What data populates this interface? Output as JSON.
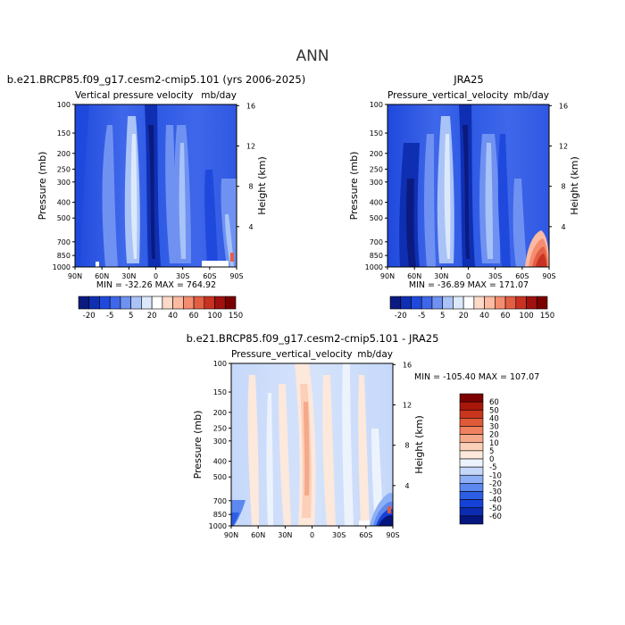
{
  "page_title": "ANN",
  "colormap_abs": [
    "#0b1a7e",
    "#0f2fb3",
    "#1f49dc",
    "#3f67ea",
    "#6f92f2",
    "#a9c3f7",
    "#dce9fb",
    "#ffffff",
    "#fdd9c7",
    "#fbbaa1",
    "#f48c70",
    "#e35f44",
    "#c93222",
    "#a1120f",
    "#7a0000"
  ],
  "colormap_diff": [
    "#06167f",
    "#0b2bb1",
    "#1541d6",
    "#2d5fe6",
    "#5c88f0",
    "#8daff5",
    "#c6d8fa",
    "#edf3fd",
    "#fde8dc",
    "#fbcfb8",
    "#f6a98a",
    "#ef815f",
    "#df5a39",
    "#c9341d",
    "#a8170a",
    "#7d0000"
  ],
  "chart_data": [
    {
      "id": "model",
      "type": "heatmap",
      "title": "b.e21.BRCP85.f09_g17.cesm2-cmip5.101 (yrs 2006-2025)",
      "subtitle_left": "Vertical pressure velocity",
      "subtitle_right": "mb/day",
      "ylabel": "Pressure (mb)",
      "ylabel_right": "Height (km)",
      "x_ticks": [
        "90N",
        "60N",
        "30N",
        "0",
        "30S",
        "60S",
        "90S"
      ],
      "y_ticks": [
        "100",
        "150",
        "200",
        "250",
        "300",
        "400",
        "500",
        "700",
        "850",
        "1000"
      ],
      "y2_ticks": [
        "16",
        "12",
        "8",
        "4"
      ],
      "stats": "MIN = -32.26   MAX = 764.92",
      "colorbar_labels": [
        "-20",
        "-5",
        "5",
        "20",
        "40",
        "60",
        "100",
        "150"
      ]
    },
    {
      "id": "obs",
      "type": "heatmap",
      "title": "JRA25",
      "subtitle_left": "Pressure_vertical_velocity",
      "subtitle_right": "mb/day",
      "ylabel": "Pressure (mb)",
      "ylabel_right": "Height (km)",
      "x_ticks": [
        "90N",
        "60N",
        "30N",
        "0",
        "30S",
        "60S",
        "90S"
      ],
      "y_ticks": [
        "100",
        "150",
        "200",
        "250",
        "300",
        "400",
        "500",
        "700",
        "850",
        "1000"
      ],
      "y2_ticks": [
        "16",
        "12",
        "8",
        "4"
      ],
      "stats": "MIN = -36.89   MAX = 171.07",
      "colorbar_labels": [
        "-20",
        "-5",
        "5",
        "20",
        "40",
        "60",
        "100",
        "150"
      ]
    },
    {
      "id": "diff",
      "type": "heatmap",
      "title": "b.e21.BRCP85.f09_g17.cesm2-cmip5.101 - JRA25",
      "subtitle_left": "Pressure_vertical_velocity",
      "subtitle_right": "mb/day",
      "ylabel": "Pressure (mb)",
      "ylabel_right": "Height (km)",
      "x_ticks": [
        "90N",
        "60N",
        "30N",
        "0",
        "30S",
        "60S",
        "90S"
      ],
      "y_ticks": [
        "100",
        "150",
        "200",
        "250",
        "300",
        "400",
        "500",
        "700",
        "850",
        "1000"
      ],
      "y2_ticks": [
        "16",
        "12",
        "8",
        "4"
      ],
      "stats": "MIN = -105.40   MAX = 107.07",
      "colorbar_labels": [
        "60",
        "50",
        "40",
        "30",
        "20",
        "10",
        "5",
        "0",
        "-5",
        "-10",
        "-20",
        "-30",
        "-40",
        "-50",
        "-60"
      ]
    }
  ]
}
